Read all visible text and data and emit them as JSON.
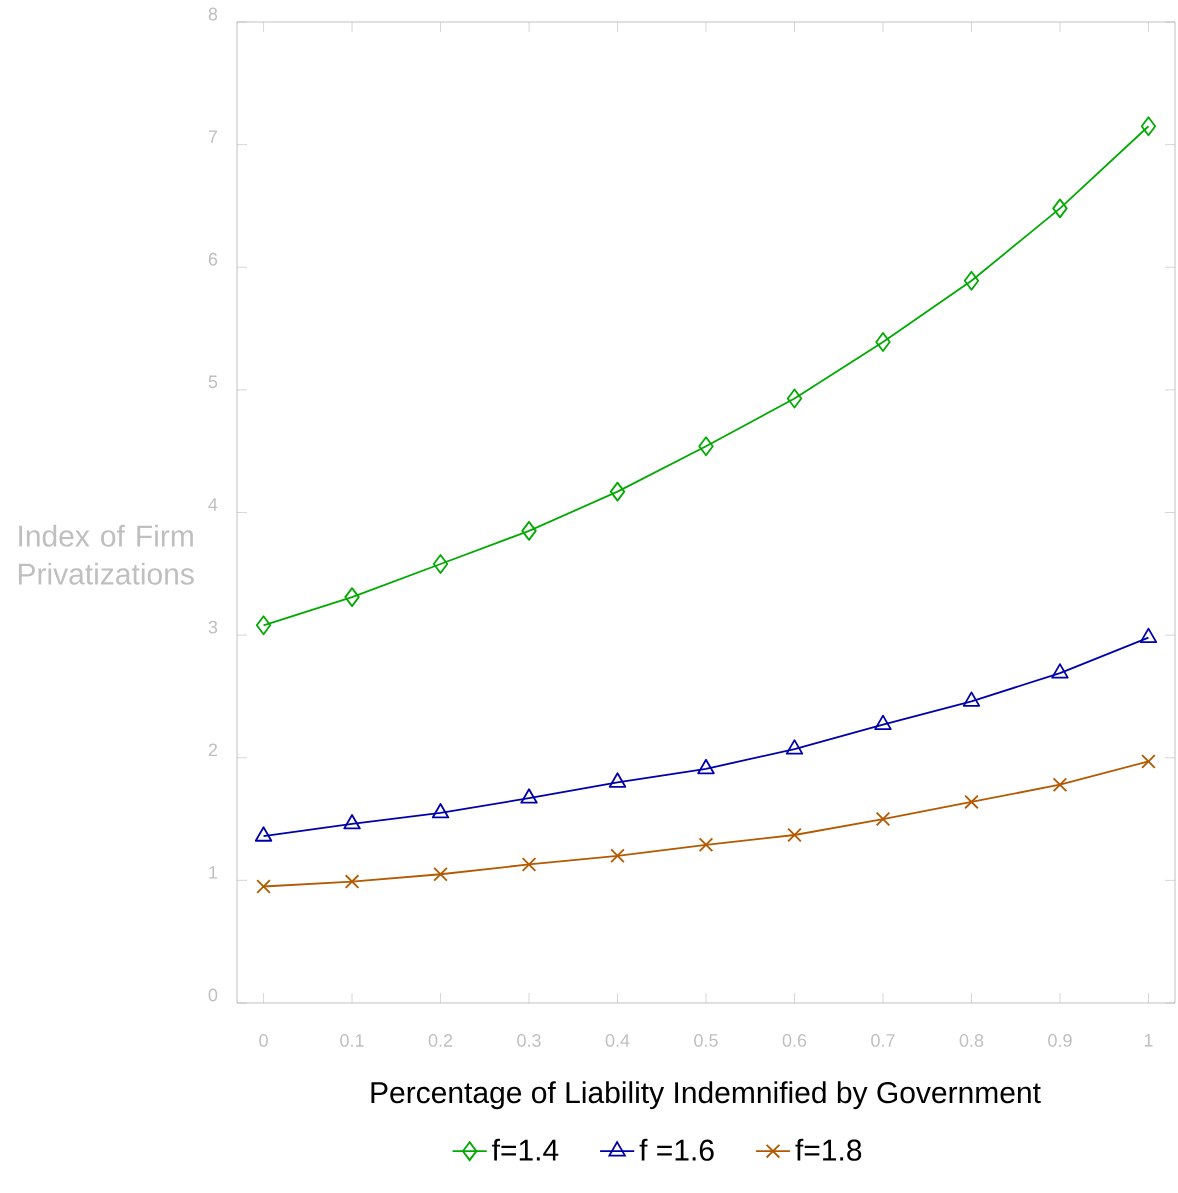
{
  "chart_data": {
    "type": "line",
    "xlabel": "Percentage of Liability Indemnified by Government",
    "ylabel": "Index of Firm Privatizations",
    "x": [
      0,
      0.1,
      0.2,
      0.3,
      0.4,
      0.5,
      0.6,
      0.7,
      0.8,
      0.9,
      1
    ],
    "series": [
      {
        "name": "f=1.4",
        "color": "#00aa00",
        "marker": "diamond",
        "values": [
          3.08,
          3.31,
          3.58,
          3.85,
          4.17,
          4.54,
          4.93,
          5.39,
          5.89,
          6.48,
          7.15
        ]
      },
      {
        "name": "f =1.6",
        "color": "#0000aa",
        "marker": "triangle",
        "values": [
          1.36,
          1.46,
          1.55,
          1.67,
          1.8,
          1.91,
          2.07,
          2.27,
          2.46,
          2.69,
          2.98
        ]
      },
      {
        "name": "f=1.8",
        "color": "#b35900",
        "marker": "cross",
        "values": [
          0.95,
          0.99,
          1.05,
          1.13,
          1.2,
          1.29,
          1.37,
          1.5,
          1.64,
          1.78,
          1.97
        ]
      }
    ],
    "xlim": [
      -0.03,
      1.03
    ],
    "ylim": [
      0,
      8
    ],
    "xticks": [
      0,
      0.1,
      0.2,
      0.3,
      0.4,
      0.5,
      0.6,
      0.7,
      0.8,
      0.9,
      1
    ],
    "yticks": [
      0,
      1,
      2,
      3,
      4,
      5,
      6,
      7,
      8
    ],
    "grid": false,
    "legend": "bottom",
    "line_style": "solid"
  }
}
